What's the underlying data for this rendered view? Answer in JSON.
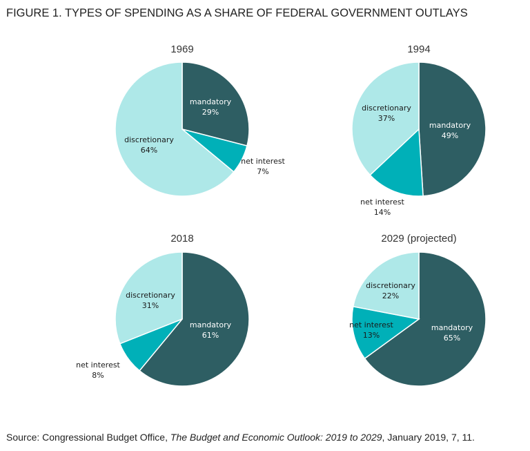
{
  "chart_data": [
    {
      "type": "pie",
      "title": "1969",
      "categories": [
        "mandatory",
        "net interest",
        "discretionary"
      ],
      "values": [
        29,
        7,
        64
      ],
      "labels": [
        "29%",
        "7%",
        "64%"
      ]
    },
    {
      "type": "pie",
      "title": "1994",
      "categories": [
        "mandatory",
        "net interest",
        "discretionary"
      ],
      "values": [
        49,
        14,
        37
      ],
      "labels": [
        "49%",
        "14%",
        "37%"
      ]
    },
    {
      "type": "pie",
      "title": "2018",
      "categories": [
        "mandatory",
        "net interest",
        "discretionary"
      ],
      "values": [
        61,
        8,
        31
      ],
      "labels": [
        "61%",
        "8%",
        "31%"
      ]
    },
    {
      "type": "pie",
      "title": "2029 (projected)",
      "categories": [
        "mandatory",
        "net interest",
        "discretionary"
      ],
      "values": [
        65,
        13,
        22
      ],
      "labels": [
        "65%",
        "13%",
        "22%"
      ]
    }
  ],
  "figure_title": "FIGURE 1. TYPES OF SPENDING AS A SHARE OF FEDERAL GOVERNMENT OUTLAYS",
  "source": {
    "prefix": "Source: Congressional Budget Office, ",
    "italic": "The Budget and Economic Outlook: 2019 to 2029",
    "suffix": ", January 2019, 7, 11."
  },
  "colors": {
    "mandatory": "#2e5e63",
    "net interest": "#00b0b8",
    "discretionary": "#aee8e8"
  }
}
